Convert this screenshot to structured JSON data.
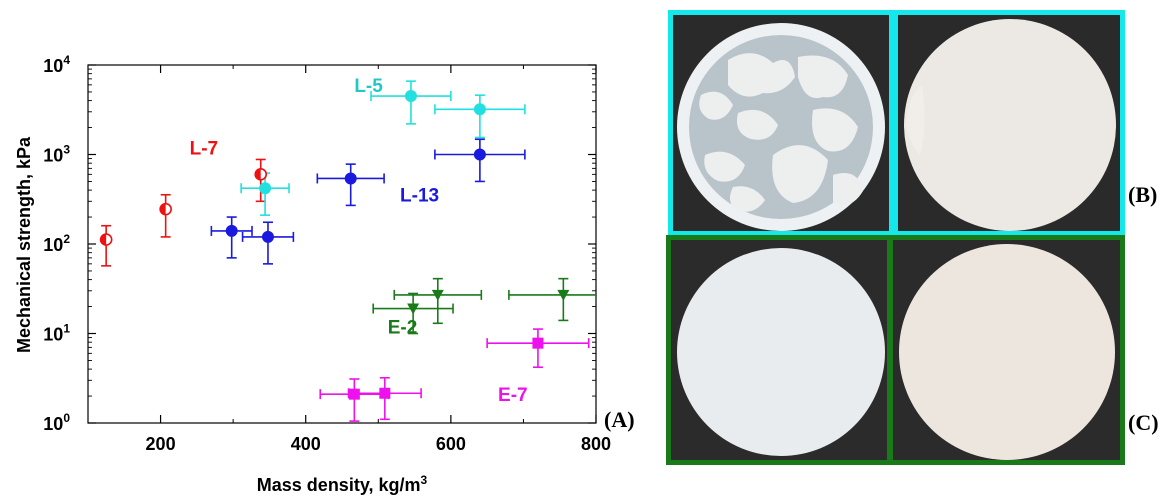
{
  "chart_data": {
    "type": "scatter",
    "xlabel": "Mass density, kg/m",
    "xlabel_superscript": "3",
    "ylabel": "Mechanical strength, kPa",
    "xlim": [
      100,
      800
    ],
    "ylim": [
      1,
      10000
    ],
    "y_scale": "log",
    "x_ticks": [
      200,
      400,
      600,
      800
    ],
    "y_ticks": [
      {
        "base": "10",
        "exp": "0",
        "value": 1
      },
      {
        "base": "10",
        "exp": "1",
        "value": 10
      },
      {
        "base": "10",
        "exp": "2",
        "value": 100
      },
      {
        "base": "10",
        "exp": "3",
        "value": 1000
      },
      {
        "base": "10",
        "exp": "4",
        "value": 10000
      }
    ],
    "grid": false,
    "panel_label": "(A)",
    "series": [
      {
        "name": "L-7",
        "color": "#ee1111",
        "marker": "half-circle",
        "points": [
          {
            "x": 125,
            "y": 112,
            "xerr": null,
            "ylo": 57,
            "yhi": 160
          },
          {
            "x": 207,
            "y": 245,
            "xerr": null,
            "ylo": 120,
            "yhi": 355
          },
          {
            "x": 338,
            "y": 600,
            "xerr": null,
            "ylo": 300,
            "yhi": 880
          }
        ]
      },
      {
        "name": "L-5",
        "color": "#22e0e0",
        "marker": "circle",
        "points": [
          {
            "x": 344,
            "y": 420,
            "xerr": 33,
            "ylo": 210,
            "yhi": 620
          },
          {
            "x": 545,
            "y": 4500,
            "xerr": 55,
            "ylo": 2200,
            "yhi": 6600
          },
          {
            "x": 640,
            "y": 3200,
            "xerr": 62,
            "ylo": 1550,
            "yhi": 4600
          }
        ]
      },
      {
        "name": "L-13",
        "color": "#1a1adf",
        "marker": "circle",
        "points": [
          {
            "x": 298,
            "y": 140,
            "xerr": 28,
            "ylo": 70,
            "yhi": 200
          },
          {
            "x": 348,
            "y": 120,
            "xerr": 35,
            "ylo": 60,
            "yhi": 175
          },
          {
            "x": 462,
            "y": 540,
            "xerr": 46,
            "ylo": 270,
            "yhi": 780
          },
          {
            "x": 640,
            "y": 1000,
            "xerr": 62,
            "ylo": 500,
            "yhi": 1480
          }
        ]
      },
      {
        "name": "E-2",
        "color": "#1a7a1a",
        "marker": "triangle-down",
        "points": [
          {
            "x": 548,
            "y": 19,
            "xerr": 55,
            "ylo": 10,
            "yhi": 28
          },
          {
            "x": 582,
            "y": 27,
            "xerr": 60,
            "ylo": 13,
            "yhi": 41
          },
          {
            "x": 755,
            "y": 27,
            "xerr": 75,
            "ylo": 14,
            "yhi": 41
          }
        ]
      },
      {
        "name": "E-7",
        "color": "#ee11ee",
        "marker": "square",
        "points": [
          {
            "x": 467,
            "y": 2.1,
            "xerr": 47,
            "ylo": 1.05,
            "yhi": 3.1
          },
          {
            "x": 509,
            "y": 2.15,
            "xerr": 50,
            "ylo": 1.1,
            "yhi": 3.2
          },
          {
            "x": 720,
            "y": 7.8,
            "xerr": 70,
            "ylo": 4.2,
            "yhi": 11.2
          }
        ]
      }
    ],
    "annotations": [
      {
        "text": "L-7",
        "color": "#ee1111",
        "x": 240,
        "y": 1000
      },
      {
        "text": "L-5",
        "color": "#22c8c8",
        "x": 467,
        "y": 5000
      },
      {
        "text": "L-13",
        "color": "#1a1adf",
        "x": 530,
        "y": 300
      },
      {
        "text": "E-2",
        "color": "#1a7a1a",
        "x": 513,
        "y": 10
      },
      {
        "text": "E-7",
        "color": "#ee11ee",
        "x": 665,
        "y": 1.75
      }
    ]
  },
  "photos": {
    "label_b": "(B)",
    "label_c": "(C)",
    "frame_b_color": "#14e8ea",
    "frame_c_color": "#1a7a1a"
  }
}
